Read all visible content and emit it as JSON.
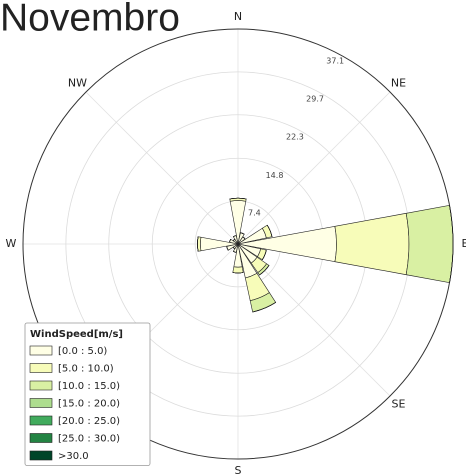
{
  "chart_data": {
    "type": "windrose",
    "title": "Novembro",
    "categories": [
      "N",
      null,
      "NE",
      null,
      "E",
      null,
      "SE",
      null,
      "S",
      null,
      null,
      null,
      "W",
      null,
      "NW",
      null
    ],
    "ylim": [
      0,
      37.1
    ],
    "yticks": [
      7.4,
      14.8,
      22.3,
      29.7,
      37.1
    ],
    "grid": true,
    "legend_title": "WindSpeed[m/s]",
    "legend": "lower left",
    "series": [
      {
        "name": "[0.0 : 5.0)",
        "color": "#ffffe5",
        "values": [
          7.5,
          2,
          1.5,
          5,
          17,
          4,
          4,
          6,
          4,
          1.5,
          1,
          2,
          6.5,
          1.5,
          1,
          1.5
        ]
      },
      {
        "name": "[5.0 : 10.0)",
        "color": "#f7fcb9",
        "values": [
          0.4,
          0,
          0,
          1,
          12.5,
          1,
          2,
          4,
          1,
          0,
          0,
          0,
          0.5,
          0,
          0,
          0
        ]
      },
      {
        "name": "[10.0 : 15.0)",
        "color": "#d9f0a3",
        "values": [
          0,
          0,
          0,
          0,
          7.6,
          0,
          0.5,
          2,
          0,
          0,
          0,
          0,
          0,
          0,
          0,
          0
        ]
      },
      {
        "name": "[15.0 : 20.0)",
        "color": "#addd8e",
        "values": [
          0,
          0,
          0,
          0,
          0,
          0,
          0,
          0,
          0,
          0,
          0,
          0,
          0,
          0,
          0,
          0
        ]
      },
      {
        "name": "[20.0 : 25.0)",
        "color": "#41ab5d",
        "values": [
          0,
          0,
          0,
          0,
          0,
          0,
          0,
          0,
          0,
          0,
          0,
          0,
          0,
          0,
          0,
          0
        ]
      },
      {
        "name": "[25.0 : 30.0)",
        "color": "#238443",
        "values": [
          0,
          0,
          0,
          0,
          0,
          0,
          0,
          0,
          0,
          0,
          0,
          0,
          0,
          0,
          0,
          0
        ]
      },
      {
        "name": ">30.0",
        "color": "#004529",
        "values": [
          0,
          0,
          0,
          0,
          0,
          0,
          0,
          0,
          0,
          0,
          0,
          0,
          0,
          0,
          0,
          0
        ]
      }
    ]
  }
}
